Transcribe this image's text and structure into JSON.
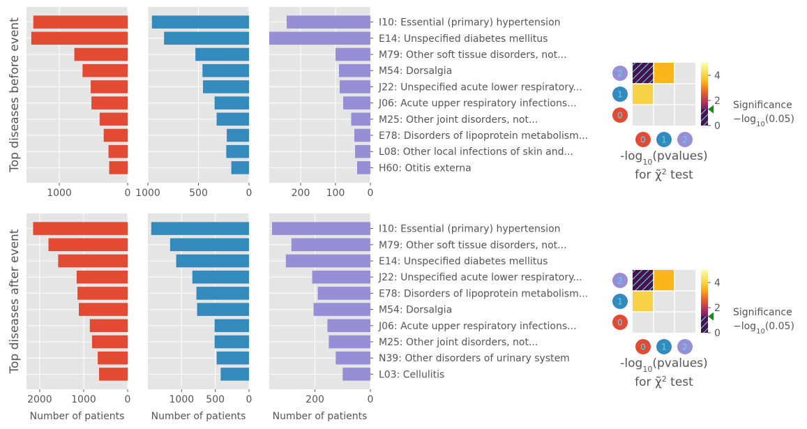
{
  "colors": {
    "cluster0": "#E24A33",
    "cluster1": "#348ABD",
    "cluster2": "#988ED5",
    "panel_bg": "#E5E5E5",
    "grid": "#FFFFFF",
    "text": "#555555",
    "hatch": "#55DDEE",
    "marker": "#1A8A1A"
  },
  "chart_data": [
    {
      "type": "bar",
      "orientation": "horizontal",
      "group": "before",
      "ylabel": "Top diseases before event",
      "xlabel": "",
      "categories": [
        "I10: Essential (primary) hypertension",
        "E14: Unspecified diabetes mellitus",
        "M79: Other soft tissue disorders, not...",
        "M54: Dorsalgia",
        "J22: Unspecified acute lower respiratory...",
        "J06: Acute upper respiratory infections...",
        "M25: Other joint disorders, not...",
        "E78: Disorders of lipoprotein metabolism...",
        "L08: Other local infections of skin and...",
        "H60: Otitis externa"
      ],
      "series": [
        {
          "cluster": "0",
          "values": [
            1380,
            1410,
            780,
            660,
            540,
            530,
            410,
            350,
            280,
            270
          ],
          "xlim": [
            1480,
            0
          ],
          "xticks": [
            1000,
            0
          ]
        },
        {
          "cluster": "1",
          "values": [
            960,
            840,
            530,
            460,
            455,
            340,
            320,
            220,
            225,
            175
          ],
          "xlim": [
            1000,
            0
          ],
          "xticks": [
            1000,
            500,
            0
          ]
        },
        {
          "cluster": "2",
          "values": [
            240,
            290,
            100,
            90,
            88,
            78,
            55,
            46,
            44,
            38
          ],
          "xlim": [
            290,
            0
          ],
          "xticks": [
            200,
            100,
            0
          ]
        }
      ]
    },
    {
      "type": "bar",
      "orientation": "horizontal",
      "group": "after",
      "ylabel": "Top diseases after event",
      "xlabel": "Number of patients",
      "categories": [
        "I10: Essential (primary) hypertension",
        "M79: Other soft tissue disorders, not...",
        "E14: Unspecified diabetes mellitus",
        "J22: Unspecified acute lower respiratory...",
        "E78: Disorders of lipoprotein metabolism...",
        "M54: Dorsalgia",
        "J06: Acute upper respiratory infections...",
        "M25: Other joint disorders, not...",
        "N39: Other disorders of urinary system",
        "L03: Cellulitis"
      ],
      "series": [
        {
          "cluster": "0",
          "values": [
            2150,
            1800,
            1580,
            1160,
            1140,
            1110,
            860,
            810,
            680,
            650
          ],
          "xlim": [
            2300,
            0
          ],
          "xticks": [
            2000,
            1000,
            0
          ]
        },
        {
          "cluster": "1",
          "values": [
            1450,
            1170,
            1080,
            840,
            780,
            770,
            510,
            510,
            480,
            420
          ],
          "xlim": [
            1500,
            0
          ],
          "xticks": [
            1000,
            500,
            0
          ]
        },
        {
          "cluster": "2",
          "values": [
            355,
            285,
            305,
            210,
            190,
            205,
            155,
            150,
            125,
            100
          ],
          "xlim": [
            365,
            0
          ],
          "xticks": [
            200,
            0
          ]
        }
      ]
    },
    {
      "type": "heatmap",
      "group": "before",
      "title": "-log10(pvalues) for χ² test",
      "title_parts": {
        "prefix": "-log",
        "sub": "10",
        "suffix": "(pvalues)",
        "line2": "for ",
        "chi": "χ̃",
        "sup": "2",
        "line2_end": " test"
      },
      "row_labels": [
        "2",
        "1",
        "0"
      ],
      "col_labels": [
        "0",
        "1",
        "2"
      ],
      "cells": [
        [
          "hatched",
          3.5,
          null
        ],
        [
          4.0,
          null,
          null
        ],
        [
          null,
          null,
          null
        ]
      ],
      "colorbar": {
        "range": [
          0,
          5
        ],
        "ticks": [
          4,
          2,
          0
        ],
        "threshold": 1.3,
        "label_line1": "Significance",
        "label_prefix": "−log",
        "label_sub": "10",
        "label_suffix": "(0.05)"
      }
    },
    {
      "type": "heatmap",
      "group": "after",
      "title": "-log10(pvalues) for χ² test",
      "title_parts": {
        "prefix": "-log",
        "sub": "10",
        "suffix": "(pvalues)",
        "line2": "for ",
        "chi": "χ̃",
        "sup": "2",
        "line2_end": " test"
      },
      "row_labels": [
        "2",
        "1",
        "0"
      ],
      "col_labels": [
        "0",
        "1",
        "2"
      ],
      "cells": [
        [
          "hatched",
          3.5,
          null
        ],
        [
          4.0,
          null,
          null
        ],
        [
          null,
          null,
          null
        ]
      ],
      "colorbar": {
        "range": [
          0,
          5
        ],
        "ticks": [
          4,
          2,
          0
        ],
        "threshold": 1.3,
        "label_line1": "Significance",
        "label_prefix": "−log",
        "label_sub": "10",
        "label_suffix": "(0.05)"
      }
    }
  ]
}
